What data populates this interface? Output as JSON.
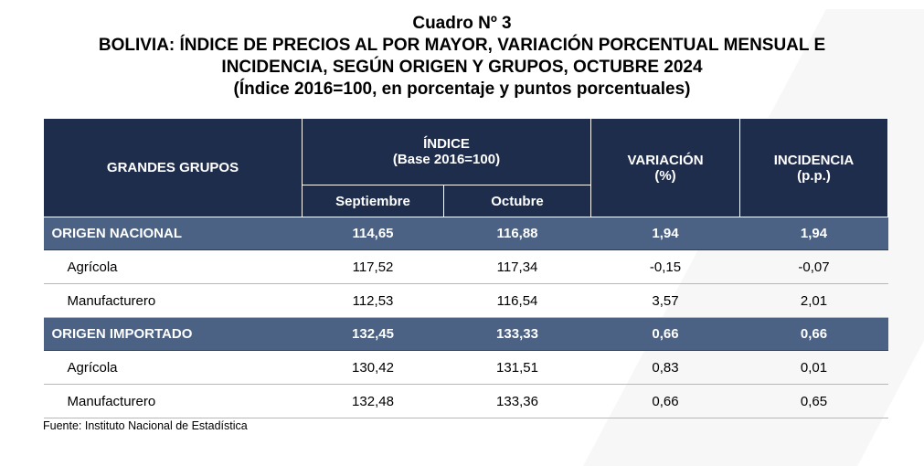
{
  "title": {
    "line1": "Cuadro Nº 3",
    "line2": "BOLIVIA: ÍNDICE DE PRECIOS AL POR MAYOR, VARIACIÓN PORCENTUAL MENSUAL E",
    "line3": "INCIDENCIA, SEGÚN ORIGEN Y GRUPOS, OCTUBRE 2024",
    "line4": "(Índice 2016=100, en porcentaje y puntos porcentuales)"
  },
  "table": {
    "headers": {
      "groups": "GRANDES GRUPOS",
      "index_line1": "ÍNDICE",
      "index_line2": "(Base 2016=100)",
      "variation_line1": "VARIACIÓN",
      "variation_line2": "(%)",
      "incidence_line1": "INCIDENCIA",
      "incidence_line2": "(p.p.)",
      "sep": "Septiembre",
      "oct": "Octubre"
    },
    "rows": [
      {
        "name": "ORIGEN NACIONAL",
        "sep": "114,65",
        "oct": "116,88",
        "var": "1,94",
        "inc": "1,94"
      },
      {
        "name": "Agrícola",
        "sep": "117,52",
        "oct": "117,34",
        "var": "-0,15",
        "inc": "-0,07"
      },
      {
        "name": "Manufacturero",
        "sep": "112,53",
        "oct": "116,54",
        "var": "3,57",
        "inc": "2,01"
      },
      {
        "name": "ORIGEN IMPORTADO",
        "sep": "132,45",
        "oct": "133,33",
        "var": "0,66",
        "inc": "0,66"
      },
      {
        "name": "Agrícola",
        "sep": "130,42",
        "oct": "131,51",
        "var": "0,83",
        "inc": "0,01"
      },
      {
        "name": "Manufacturero",
        "sep": "132,48",
        "oct": "133,36",
        "var": "0,66",
        "inc": "0,65"
      }
    ]
  },
  "source": "Fuente: Instituto Nacional de Estadística",
  "colors": {
    "header_bg": "#1f2d4d",
    "group_row_bg": "#4b6284"
  }
}
